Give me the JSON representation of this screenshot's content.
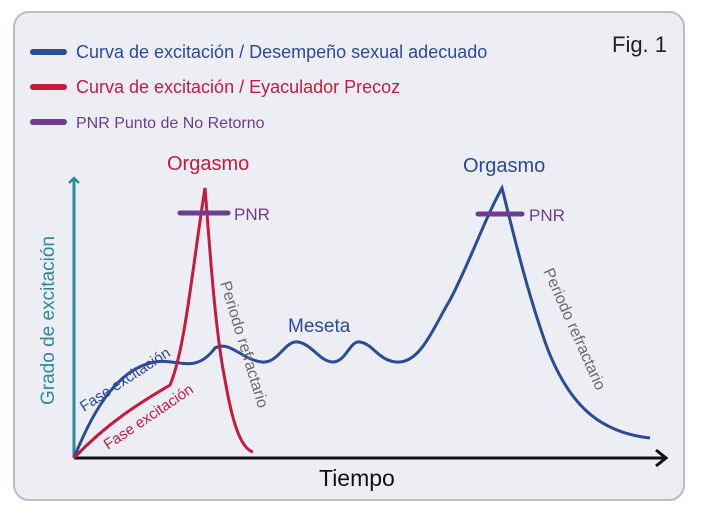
{
  "figure_label": "Fig. 1",
  "legend": [
    {
      "label": "Curva de excitación / Desempeño sexual adecuado",
      "color": "#2b4a9a"
    },
    {
      "label": "Curva de excitación / Eyaculador Precoz",
      "color": "#c8193f"
    },
    {
      "label": "PNR Punto de No Retorno",
      "color": "#6e3d8e"
    }
  ],
  "axes": {
    "x_label": "Tiempo",
    "y_label": "Grado de excitación",
    "y_axis_color": "#2e8a98"
  },
  "annotations": {
    "orgasm_red": "Orgasmo",
    "orgasm_blue": "Orgasmo",
    "pnr_red": "PNR",
    "pnr_blue": "PNR",
    "meseta": "Meseta",
    "fase_blue": "Fase excitación",
    "fase_red": "Fase excitación",
    "refractario_red": "Periodo refractario",
    "refractario_blue": "Periodo refractario"
  }
}
